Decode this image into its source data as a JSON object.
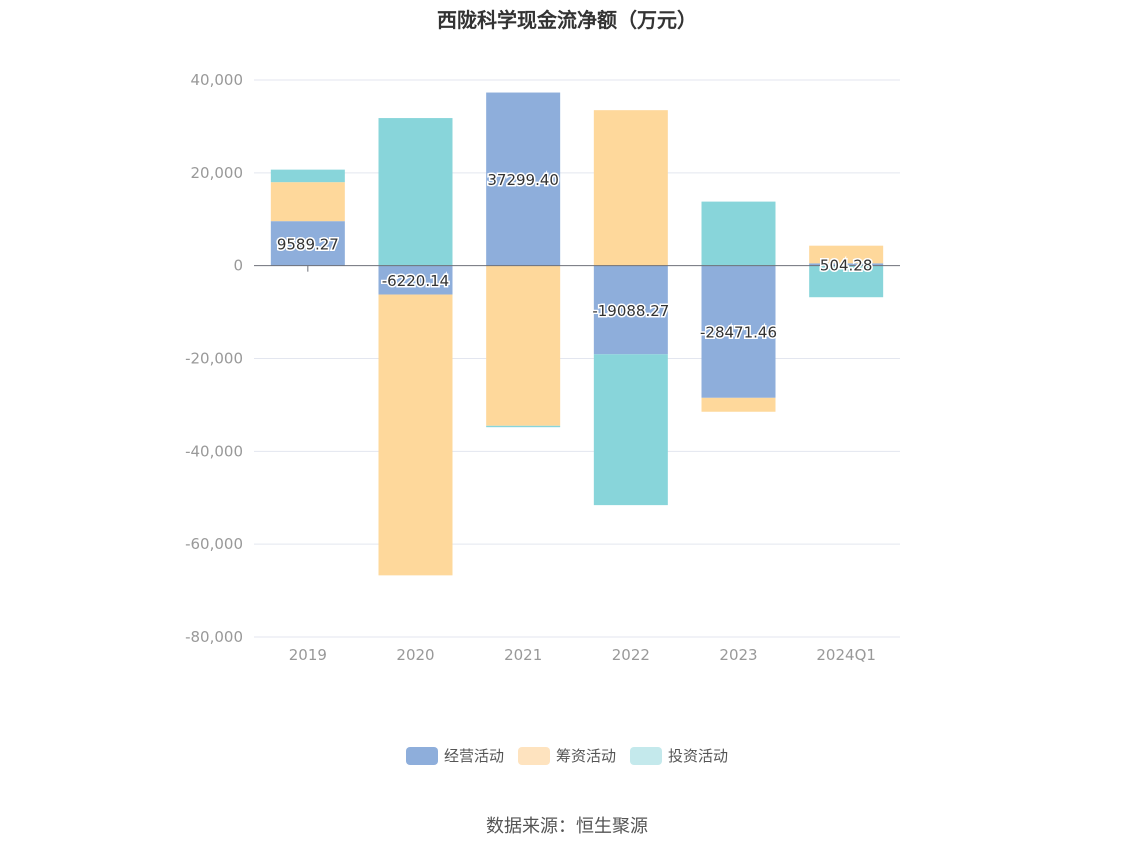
{
  "chart_data": {
    "type": "bar",
    "stacked": true,
    "title": "西陇科学现金流净额（万元）",
    "categories": [
      "2019",
      "2020",
      "2021",
      "2022",
      "2023",
      "2024Q1"
    ],
    "ylim": [
      -80000,
      40000
    ],
    "yticks": [
      40000,
      20000,
      0,
      -20000,
      -40000,
      -60000,
      -80000
    ],
    "ytick_labels": [
      "40,000",
      "20,000",
      "0",
      "-20,000",
      "-40,000",
      "-60,000",
      "-80,000"
    ],
    "grid": true,
    "legend_position": "bottom",
    "series": [
      {
        "name": "经营活动",
        "color": "#8eaedb",
        "values": [
          9589.27,
          -6220.14,
          37299.4,
          -19088.27,
          -28471.46,
          504.28
        ]
      },
      {
        "name": "筹资活动",
        "color": "#fed89b",
        "values": [
          8400,
          -60500,
          -34500,
          33500,
          -3000,
          3800
        ]
      },
      {
        "name": "投资活动",
        "color": "#88d5da",
        "values": [
          2700,
          31800,
          -300,
          -32500,
          13800,
          -6800
        ]
      }
    ],
    "data_labels": [
      "9589.27",
      "-6220.14",
      "37299.40",
      "-19088.27",
      "-28471.46",
      "504.28"
    ],
    "legend_swatch_colors": [
      "#8eaedb",
      "#fee3bf",
      "#c4e9ec"
    ]
  },
  "source": "数据来源：恒生聚源"
}
